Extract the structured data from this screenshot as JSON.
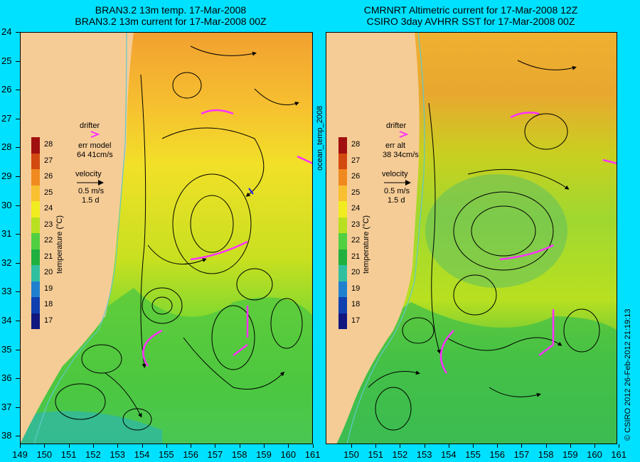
{
  "left_panel": {
    "title_line1": "BRAN3.2 13m temp. 17-Mar-2008",
    "title_line2": "BRAN3.2 13m current for 17-Mar-2008 00Z",
    "drifter_label": "drifter",
    "err_label": "err model",
    "err_value": "64 41cm/s",
    "velocity_label": "velocity",
    "velocity_speed": "0.5 m/s",
    "velocity_time": "1.5 d"
  },
  "right_panel": {
    "title_line1": "CMRNRT Altimetric current for 17-Mar-2008 12Z",
    "title_line2": "CSIRO 3day AVHRR SST for 17-Mar-2008 00Z",
    "drifter_label": "drifter",
    "err_label": "err alt",
    "err_value": "38 34cm/s",
    "velocity_label": "velocity",
    "velocity_speed": "0.5 m/s",
    "velocity_time": "1.5 d"
  },
  "colorbar": {
    "title": "temperature (°C)",
    "labels": [
      "28",
      "27",
      "26",
      "25",
      "24",
      "23",
      "22",
      "21",
      "20",
      "19",
      "18",
      "17"
    ],
    "colors": [
      "#a01010",
      "#d24a10",
      "#f08a20",
      "#f8c030",
      "#f0ec20",
      "#b8e020",
      "#50d040",
      "#20b040",
      "#30c0a0",
      "#2080d0",
      "#1040b0",
      "#101880"
    ]
  },
  "y_axis_labels": [
    "24",
    "25",
    "26",
    "27",
    "28",
    "29",
    "30",
    "31",
    "32",
    "33",
    "34",
    "35",
    "36",
    "37",
    "38"
  ],
  "x_axis_labels_left": [
    "149",
    "150",
    "151",
    "152",
    "153",
    "154",
    "155",
    "156",
    "157",
    "158",
    "159",
    "160",
    "161"
  ],
  "x_axis_labels_right": [
    "150",
    "151",
    "152",
    "153",
    "154",
    "155",
    "156",
    "157",
    "158",
    "159",
    "160",
    "161"
  ],
  "side_label": "ocean_temp_2008",
  "credit": "© CSIRO 2012   26-Feb-2012 21:19:13"
}
